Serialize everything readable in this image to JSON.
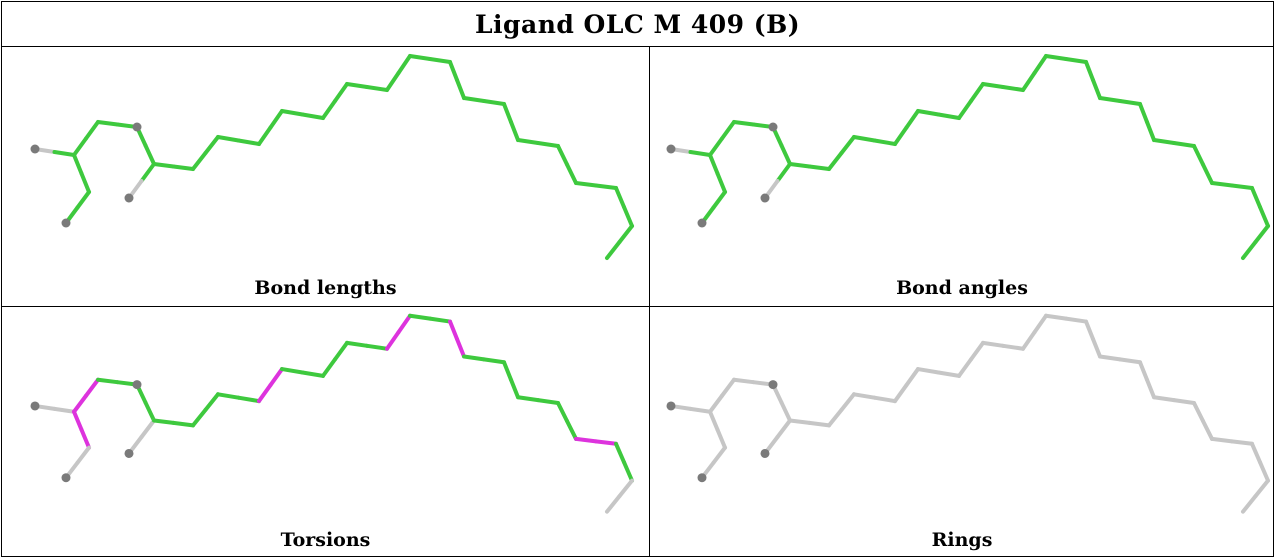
{
  "title": "Ligand OLC M 409 (B)",
  "panels": [
    {
      "caption": "Bond lengths",
      "mode": "lengths"
    },
    {
      "caption": "Bond angles",
      "mode": "angles"
    },
    {
      "caption": "Torsions",
      "mode": "torsions"
    },
    {
      "caption": "Rings",
      "mode": "rings"
    }
  ],
  "colors": {
    "green": "#3ec93e",
    "magenta": "#dd33dd",
    "gray": "#c6c6c6",
    "atom": "#7a7a7a"
  }
}
